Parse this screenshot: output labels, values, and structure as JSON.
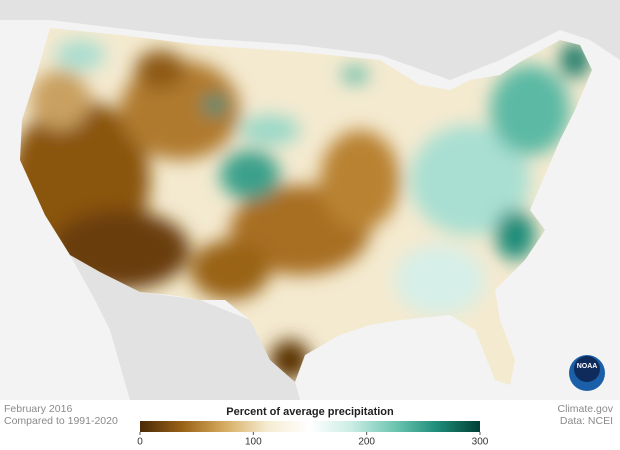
{
  "notes": {
    "date": "February 2016",
    "baseline": "Compared to 1991-2020"
  },
  "credits": {
    "site": "Climate.gov",
    "data": "Data: NCEI"
  },
  "logo": "NOAA",
  "legend": {
    "title": "Percent of average precipitation",
    "range": [
      0,
      300
    ],
    "ticks": [
      0,
      100,
      200,
      300
    ],
    "colors": [
      "#4a2a06",
      "#9a6216",
      "#d6ad62",
      "#f6ecd2",
      "#ffffff",
      "#c9ece3",
      "#6cc5b1",
      "#1d8c78",
      "#013f35"
    ]
  }
}
